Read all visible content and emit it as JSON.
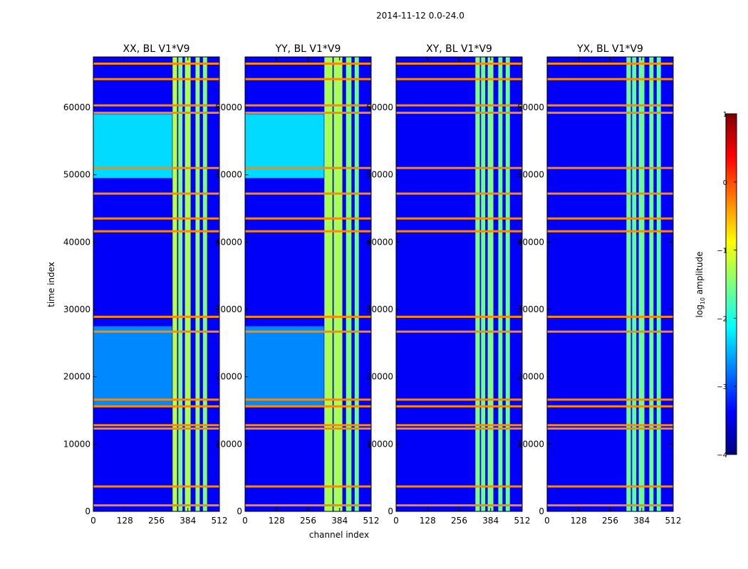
{
  "figure": {
    "suptitle": "2014-11-12 0.0-24.0",
    "xlabel": "channel index",
    "ylabel": "time index"
  },
  "colorbar": {
    "label_prefix": "log",
    "label_sub": "10",
    "label_suffix": " amplitude",
    "ticks": [
      1,
      0,
      -1,
      -2,
      -3,
      -4
    ],
    "tick_labels": [
      "1",
      "0",
      "−1",
      "−2",
      "−3",
      "−4"
    ],
    "range": [
      -4,
      1
    ],
    "colormap": "jet",
    "colormap_colors": [
      "#00007f",
      "#0000ff",
      "#007fff",
      "#00ffff",
      "#7fff7f",
      "#ffff00",
      "#ff7f00",
      "#ff0000",
      "#7f0000"
    ]
  },
  "chart_data": [
    {
      "type": "heatmap",
      "title": "XX, BL V1*V9",
      "xlim": [
        0,
        512
      ],
      "ylim": [
        0,
        67500
      ],
      "x_ticks": [
        0,
        128,
        256,
        384,
        512
      ],
      "x_tick_labels": [
        "0",
        "128",
        "256",
        "384",
        "512"
      ],
      "y_ticks": [
        0,
        10000,
        20000,
        30000,
        40000,
        50000,
        60000
      ],
      "y_tick_labels": [
        "0",
        "10000",
        "20000",
        "30000",
        "40000",
        "50000",
        "60000"
      ],
      "background_log10": -3.4,
      "elevated_bands": [
        {
          "t": [
            49500,
            59000
          ],
          "level": -2.3
        },
        {
          "t": [
            15500,
            27500
          ],
          "level": -2.7
        }
      ],
      "bright_channels": [
        {
          "ch": [
            322,
            340
          ],
          "level": -1.2
        },
        {
          "ch": [
            345,
            362
          ],
          "level": -1.5
        },
        {
          "ch": [
            372,
            395
          ],
          "level": -1.3
        },
        {
          "ch": [
            415,
            432
          ],
          "level": -1.4
        },
        {
          "ch": [
            445,
            462
          ],
          "level": -1.5
        }
      ],
      "rfi_rows": [
        900,
        3700,
        12300,
        12800,
        15600,
        16600,
        26700,
        28900,
        41600,
        43500,
        47200,
        51000,
        59200,
        60300,
        64200,
        66500
      ]
    },
    {
      "type": "heatmap",
      "title": "YY, BL V1*V9",
      "xlim": [
        0,
        512
      ],
      "ylim": [
        0,
        67500
      ],
      "x_ticks": [
        0,
        128,
        256,
        384,
        512
      ],
      "x_tick_labels": [
        "0",
        "128",
        "256",
        "384",
        "512"
      ],
      "y_ticks": [
        0,
        10000,
        20000,
        30000,
        40000,
        50000,
        60000
      ],
      "y_tick_labels": [
        "0",
        "10000",
        "20000",
        "30000",
        "40000",
        "50000",
        "60000"
      ],
      "background_log10": -3.4,
      "elevated_bands": [
        {
          "t": [
            49500,
            59000
          ],
          "level": -2.3
        },
        {
          "t": [
            15500,
            27500
          ],
          "level": -2.7
        }
      ],
      "bright_channels": [
        {
          "ch": [
            322,
            355
          ],
          "level": -1.3
        },
        {
          "ch": [
            360,
            395
          ],
          "level": -1.3
        },
        {
          "ch": [
            410,
            432
          ],
          "level": -1.5
        },
        {
          "ch": [
            445,
            462
          ],
          "level": -1.6
        }
      ],
      "rfi_rows": [
        900,
        3700,
        12300,
        12800,
        15600,
        16600,
        26700,
        28900,
        41600,
        43500,
        47200,
        51000,
        59200,
        60300,
        64200,
        66500
      ]
    },
    {
      "type": "heatmap",
      "title": "XY, BL V1*V9",
      "xlim": [
        0,
        512
      ],
      "ylim": [
        0,
        67500
      ],
      "x_ticks": [
        0,
        128,
        256,
        384,
        512
      ],
      "x_tick_labels": [
        "0",
        "128",
        "256",
        "384",
        "512"
      ],
      "y_ticks": [
        0,
        10000,
        20000,
        30000,
        40000,
        50000,
        60000
      ],
      "y_tick_labels": [
        "0",
        "10000",
        "20000",
        "30000",
        "40000",
        "50000",
        "60000"
      ],
      "background_log10": -3.4,
      "elevated_bands": [],
      "bright_channels": [
        {
          "ch": [
            322,
            340
          ],
          "level": -1.5
        },
        {
          "ch": [
            345,
            362
          ],
          "level": -1.6
        },
        {
          "ch": [
            372,
            395
          ],
          "level": -1.5
        },
        {
          "ch": [
            415,
            432
          ],
          "level": -1.6
        },
        {
          "ch": [
            445,
            462
          ],
          "level": -1.6
        }
      ],
      "rfi_rows": [
        900,
        3700,
        12300,
        12800,
        15600,
        16600,
        26700,
        28900,
        41600,
        43500,
        47200,
        51000,
        59200,
        60300,
        64200,
        66500
      ]
    },
    {
      "type": "heatmap",
      "title": "YX, BL V1*V9",
      "xlim": [
        0,
        512
      ],
      "ylim": [
        0,
        67500
      ],
      "x_ticks": [
        0,
        128,
        256,
        384,
        512
      ],
      "x_tick_labels": [
        "0",
        "128",
        "256",
        "384",
        "512"
      ],
      "y_ticks": [
        0,
        10000,
        20000,
        30000,
        40000,
        50000,
        60000
      ],
      "y_tick_labels": [
        "0",
        "10000",
        "20000",
        "30000",
        "40000",
        "50000",
        "60000"
      ],
      "background_log10": -3.4,
      "elevated_bands": [],
      "bright_channels": [
        {
          "ch": [
            322,
            340
          ],
          "level": -1.6
        },
        {
          "ch": [
            345,
            362
          ],
          "level": -1.7
        },
        {
          "ch": [
            372,
            395
          ],
          "level": -1.6
        },
        {
          "ch": [
            415,
            432
          ],
          "level": -1.6
        },
        {
          "ch": [
            445,
            462
          ],
          "level": -1.7
        }
      ],
      "rfi_rows": [
        900,
        3700,
        12300,
        12800,
        15600,
        16600,
        26700,
        28900,
        41600,
        43500,
        47200,
        51000,
        59200,
        60300,
        64200,
        66500
      ]
    }
  ]
}
